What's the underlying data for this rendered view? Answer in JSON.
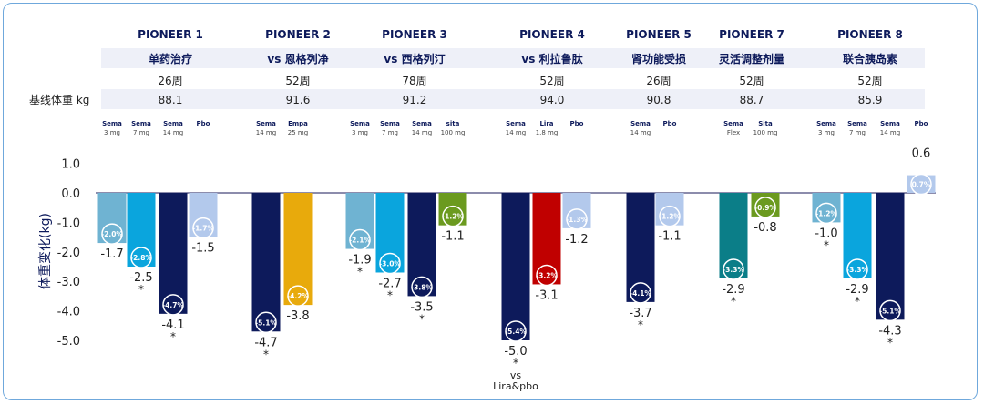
{
  "header": {
    "trials": [
      "PIONEER 1",
      "PIONEER 2",
      "PIONEER 3",
      "PIONEER 4",
      "PIONEER 5",
      "PIONEER 7",
      "PIONEER 8"
    ],
    "subtitles": [
      "单药治疗",
      "vs 恩格列净",
      "vs 西格列汀",
      "vs 利拉鲁肽",
      "肾功能受损",
      "灵活调整剂量",
      "联合胰岛素"
    ],
    "weeks": [
      "26周",
      "52周",
      "78周",
      "52周",
      "26周",
      "52周",
      "52周"
    ],
    "baseline_label": "基线体重 kg",
    "baseline_values": [
      "88.1",
      "91.6",
      "91.2",
      "94.0",
      "90.8",
      "88.7",
      "85.9"
    ]
  },
  "colors": {
    "sema3": "#6fb3d2",
    "sema7": "#0aa5dd",
    "sema14": "#0d1a5b",
    "pbo": "#b3c9ec",
    "empa": "#e8aa0c",
    "sita": "#6b9a1f",
    "lira": "#c00000",
    "flex": "#0b7e88",
    "frame": "#6fa8dc"
  },
  "chart_data": {
    "type": "bar",
    "ylabel": "体重变化(kg)",
    "ylim": [
      -5.0,
      1.0
    ],
    "yticks": [
      "1.0",
      "0.0",
      "-1.0",
      "-2.0",
      "-3.0",
      "-4.0",
      "-5.0"
    ],
    "grid": false,
    "groups": [
      {
        "trial": "PIONEER 1",
        "bars": [
          {
            "name": "Sema",
            "dose": "3 mg",
            "value": -1.7,
            "value_label": "-1.7",
            "pct": "-2.0%",
            "star": false,
            "color_key": "sema3"
          },
          {
            "name": "Sema",
            "dose": "7 mg",
            "value": -2.5,
            "value_label": "-2.5",
            "pct": "-2.8%",
            "star": true,
            "color_key": "sema7"
          },
          {
            "name": "Sema",
            "dose": "14 mg",
            "value": -4.1,
            "value_label": "-4.1",
            "pct": "-4.7%",
            "star": true,
            "color_key": "sema14"
          },
          {
            "name": "Pbo",
            "dose": "",
            "value": -1.5,
            "value_label": "-1.5",
            "pct": "-1.7%",
            "star": false,
            "color_key": "pbo"
          }
        ]
      },
      {
        "trial": "PIONEER 2",
        "bars": [
          {
            "name": "Sema",
            "dose": "14 mg",
            "value": -4.7,
            "value_label": "-4.7",
            "pct": "-5.1%",
            "star": true,
            "color_key": "sema14"
          },
          {
            "name": "Empa",
            "dose": "25 mg",
            "value": -3.8,
            "value_label": "-3.8",
            "pct": "-4.2%",
            "star": false,
            "color_key": "empa"
          }
        ]
      },
      {
        "trial": "PIONEER 3",
        "bars": [
          {
            "name": "Sema",
            "dose": "3 mg",
            "value": -1.9,
            "value_label": "-1.9",
            "pct": "-2.1%",
            "star": true,
            "color_key": "sema3"
          },
          {
            "name": "Sema",
            "dose": "7 mg",
            "value": -2.7,
            "value_label": "-2.7",
            "pct": "-3.0%",
            "star": true,
            "color_key": "sema7"
          },
          {
            "name": "Sema",
            "dose": "14 mg",
            "value": -3.5,
            "value_label": "-3.5",
            "pct": "-3.8%",
            "star": true,
            "color_key": "sema14"
          },
          {
            "name": "sita",
            "dose": "100 mg",
            "value": -1.1,
            "value_label": "-1.1",
            "pct": "-1.2%",
            "star": false,
            "color_key": "sita"
          }
        ]
      },
      {
        "trial": "PIONEER 4",
        "bars": [
          {
            "name": "Sema",
            "dose": "14 mg",
            "value": -5.0,
            "value_label": "-5.0",
            "pct": "-5.4%",
            "star": true,
            "note": "vs",
            "note2": "Lira&pbo",
            "color_key": "sema14"
          },
          {
            "name": "Lira",
            "dose": "1.8 mg",
            "value": -3.1,
            "value_label": "-3.1",
            "pct": "-3.2%",
            "star": false,
            "color_key": "lira"
          },
          {
            "name": "Pbo",
            "dose": "",
            "value": -1.2,
            "value_label": "-1.2",
            "pct": "-1.3%",
            "star": false,
            "color_key": "pbo"
          }
        ]
      },
      {
        "trial": "PIONEER 5",
        "bars": [
          {
            "name": "Sema",
            "dose": "14 mg",
            "value": -3.7,
            "value_label": "-3.7",
            "pct": "-4.1%",
            "star": true,
            "color_key": "sema14"
          },
          {
            "name": "Pbo",
            "dose": "",
            "value": -1.1,
            "value_label": "-1.1",
            "pct": "-1.2%",
            "star": false,
            "color_key": "pbo"
          }
        ]
      },
      {
        "trial": "PIONEER 7",
        "bars": [
          {
            "name": "Sema",
            "dose": "Flex",
            "value": -2.9,
            "value_label": "-2.9",
            "pct": "-3.3%",
            "star": true,
            "color_key": "flex"
          },
          {
            "name": "Sita",
            "dose": "100 mg",
            "value": -0.8,
            "value_label": "-0.8",
            "pct": "-0.9%",
            "star": false,
            "color_key": "sita"
          }
        ]
      },
      {
        "trial": "PIONEER 8",
        "bars": [
          {
            "name": "Sema",
            "dose": "3 mg",
            "value": -1.0,
            "value_label": "-1.0",
            "pct": "-1.2%",
            "star": true,
            "color_key": "sema3"
          },
          {
            "name": "Sema",
            "dose": "7 mg",
            "value": -2.9,
            "value_label": "-2.9",
            "pct": "-3.3%",
            "star": true,
            "color_key": "sema7"
          },
          {
            "name": "Sema",
            "dose": "14 mg",
            "value": -4.3,
            "value_label": "-4.3",
            "pct": "-5.1%",
            "star": true,
            "color_key": "sema14"
          },
          {
            "name": "Pbo",
            "dose": "",
            "value": 0.6,
            "value_label": "0.6",
            "pct": "0.7%",
            "star": false,
            "color_key": "pbo"
          }
        ]
      }
    ]
  }
}
